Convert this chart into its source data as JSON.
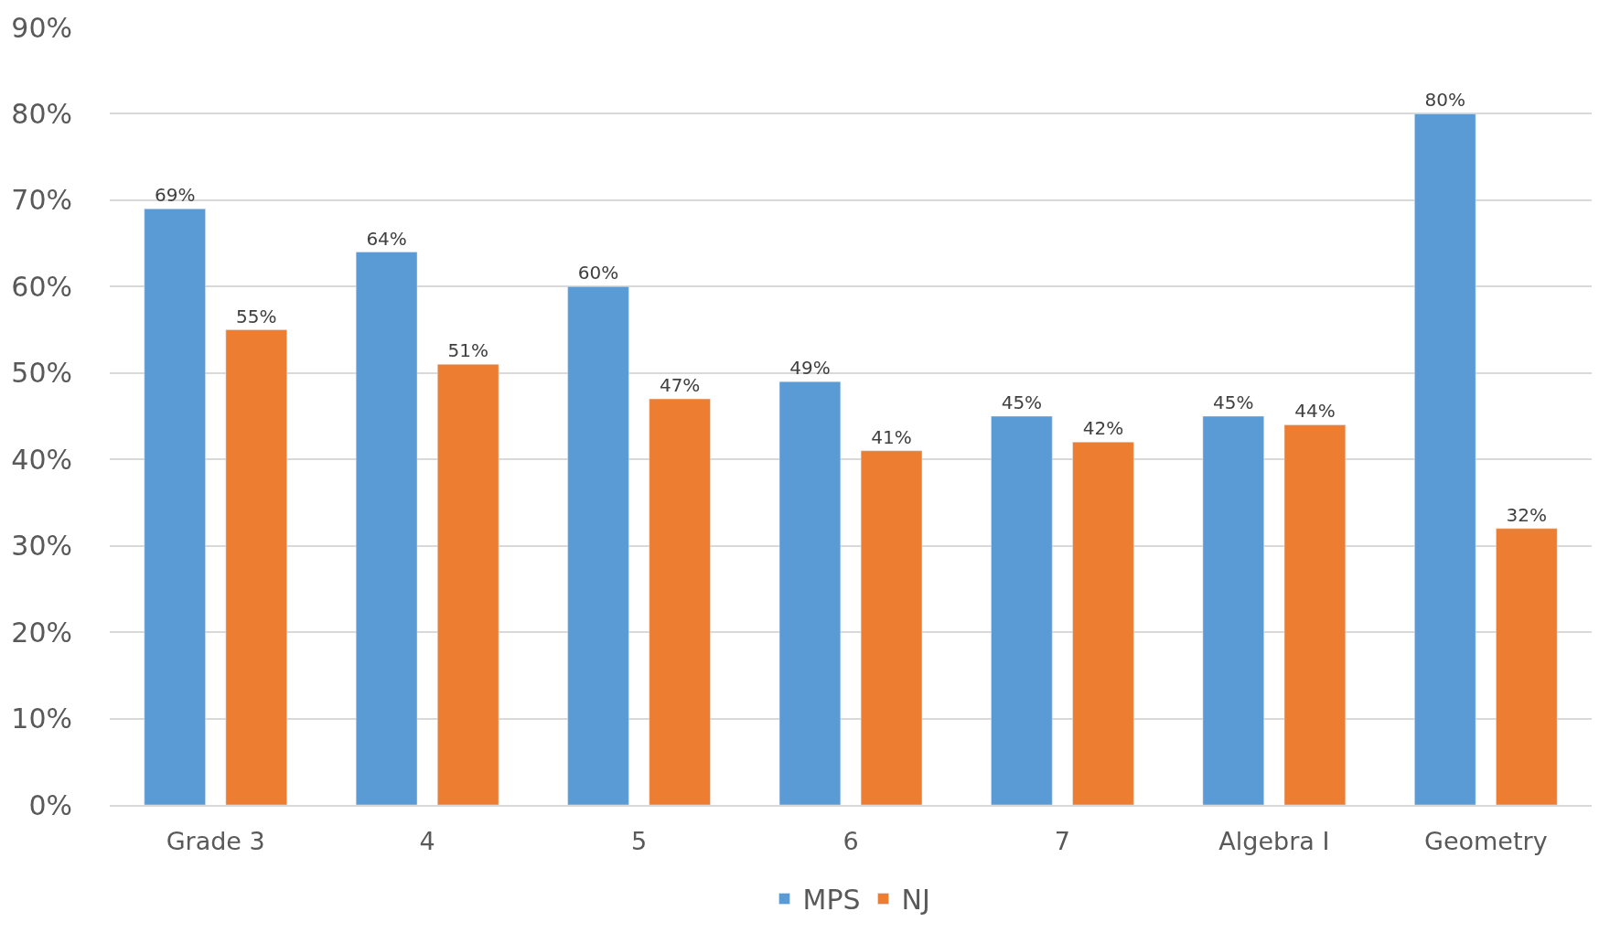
{
  "chart_data": {
    "type": "bar",
    "categories": [
      "Grade 3",
      "4",
      "5",
      "6",
      "7",
      "Algebra I",
      "Geometry"
    ],
    "series": [
      {
        "name": "MPS",
        "color": "#5b9bd5",
        "values": [
          69,
          64,
          60,
          49,
          45,
          45,
          80
        ],
        "value_labels": [
          "69%",
          "64%",
          "60%",
          "49%",
          "45%",
          "45%",
          "80%"
        ]
      },
      {
        "name": "NJ",
        "color": "#ed7d31",
        "values": [
          55,
          51,
          47,
          41,
          42,
          44,
          32
        ],
        "value_labels": [
          "55%",
          "51%",
          "47%",
          "41%",
          "42%",
          "44%",
          "32%"
        ]
      }
    ],
    "ylim": [
      0,
      90
    ],
    "yticks": [
      {
        "value": 0,
        "label": "0%"
      },
      {
        "value": 10,
        "label": "10%"
      },
      {
        "value": 20,
        "label": "20%"
      },
      {
        "value": 30,
        "label": "30%"
      },
      {
        "value": 40,
        "label": "40%"
      },
      {
        "value": 50,
        "label": "50%"
      },
      {
        "value": 60,
        "label": "60%"
      },
      {
        "value": 70,
        "label": "70%"
      },
      {
        "value": 80,
        "label": "80%"
      },
      {
        "value": 90,
        "label": "90%"
      }
    ],
    "grid": "y",
    "legend": "bottom"
  }
}
